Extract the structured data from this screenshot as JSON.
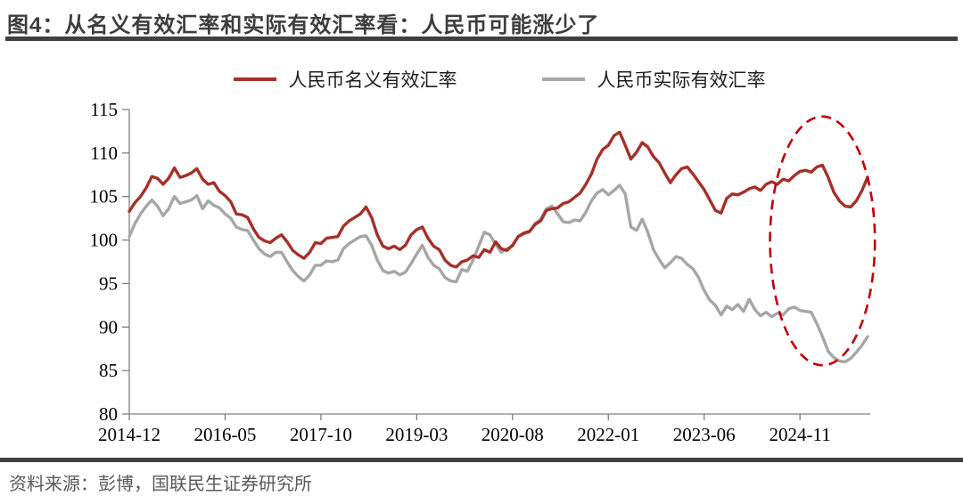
{
  "title": "图4：从名义有效汇率和实际有效汇率看：人民币可能涨少了",
  "source": "资料来源：彭博，国联民生证券研究所",
  "legend": [
    {
      "label": "人民币名义有效汇率",
      "color": "#A5302A"
    },
    {
      "label": "人民币实际有效汇率",
      "color": "#A6A6A6"
    }
  ],
  "chart_data": {
    "type": "line",
    "title": "图4：从名义有效汇率和实际有效汇率看：人民币可能涨少了",
    "xlabel": "",
    "ylabel": "",
    "ylim": [
      80,
      115
    ],
    "y_ticks": [
      80,
      85,
      90,
      95,
      100,
      105,
      110,
      115
    ],
    "x_start": "2014-12",
    "x_end": "2025-11",
    "frequency": "monthly",
    "x_tick_labels": [
      "2014-12",
      "2016-05",
      "2017-10",
      "2019-03",
      "2020-08",
      "2022-01",
      "2023-06",
      "2024-11"
    ],
    "x_tick_indices": [
      0,
      17,
      34,
      51,
      68,
      85,
      102,
      119
    ],
    "grid": false,
    "legend_position": "top",
    "series": [
      {
        "name": "人民币名义有效汇率",
        "color": "#A5302A",
        "values": [
          103.3,
          104.3,
          105.0,
          106.0,
          107.3,
          107.1,
          106.4,
          107.1,
          108.3,
          107.2,
          107.4,
          107.7,
          108.2,
          107.0,
          106.4,
          106.6,
          105.6,
          105.1,
          104.4,
          103.0,
          102.9,
          102.6,
          101.3,
          100.3,
          99.9,
          99.7,
          100.2,
          100.6,
          99.8,
          98.8,
          98.3,
          97.9,
          98.6,
          99.7,
          99.6,
          100.2,
          100.3,
          100.4,
          101.6,
          102.2,
          102.6,
          103.0,
          103.8,
          102.6,
          100.6,
          99.3,
          99.0,
          99.3,
          98.9,
          99.4,
          100.6,
          101.2,
          101.5,
          100.2,
          99.3,
          98.9,
          97.7,
          97.1,
          96.9,
          97.5,
          97.7,
          98.2,
          98.0,
          98.9,
          98.6,
          99.8,
          99.0,
          98.8,
          99.4,
          100.4,
          100.8,
          101.0,
          101.8,
          102.2,
          103.4,
          103.6,
          103.7,
          104.2,
          104.4,
          104.9,
          105.4,
          106.4,
          107.6,
          109.3,
          110.4,
          110.9,
          112.0,
          112.4,
          110.9,
          109.3,
          110.1,
          111.2,
          110.7,
          109.6,
          108.9,
          107.7,
          106.6,
          107.5,
          108.2,
          108.4,
          107.6,
          106.7,
          105.8,
          104.6,
          103.4,
          103.1,
          104.8,
          105.3,
          105.2,
          105.5,
          105.9,
          106.1,
          105.7,
          106.4,
          106.7,
          106.4,
          107.0,
          106.8,
          107.4,
          107.9,
          108.0,
          107.8,
          108.4,
          108.6,
          107.2,
          105.5,
          104.5,
          103.9,
          103.8,
          104.5,
          105.7,
          107.2
        ]
      },
      {
        "name": "人民币实际有效汇率",
        "color": "#A6A6A6",
        "values": [
          100.4,
          101.9,
          103.0,
          103.9,
          104.6,
          103.9,
          102.8,
          103.6,
          105.0,
          104.2,
          104.4,
          104.6,
          105.1,
          103.6,
          104.5,
          104.0,
          103.7,
          103.0,
          102.5,
          101.5,
          101.2,
          101.1,
          100.0,
          99.0,
          98.4,
          98.1,
          98.6,
          98.6,
          97.5,
          96.5,
          95.8,
          95.3,
          96.0,
          97.1,
          97.1,
          97.6,
          97.5,
          97.7,
          99.0,
          99.6,
          100.0,
          100.4,
          100.5,
          99.4,
          97.7,
          96.5,
          96.2,
          96.4,
          96.0,
          96.3,
          97.3,
          98.4,
          99.4,
          98.0,
          97.1,
          96.7,
          95.7,
          95.3,
          95.2,
          96.6,
          96.4,
          97.7,
          99.3,
          100.9,
          100.6,
          99.5,
          98.6,
          99.0,
          99.3,
          100.4,
          100.7,
          100.9,
          101.9,
          102.4,
          103.6,
          103.9,
          103.0,
          102.1,
          102.0,
          102.3,
          102.2,
          103.2,
          104.5,
          105.4,
          105.8,
          105.2,
          105.7,
          106.3,
          105.3,
          101.5,
          101.1,
          102.4,
          100.9,
          98.9,
          97.8,
          96.8,
          97.4,
          98.1,
          97.9,
          97.2,
          96.7,
          95.7,
          94.2,
          93.1,
          92.5,
          91.4,
          92.4,
          92.0,
          92.6,
          91.8,
          93.2,
          92.0,
          91.3,
          91.7,
          91.2,
          91.6,
          91.4,
          92.1,
          92.3,
          91.9,
          91.8,
          91.7,
          90.4,
          88.9,
          87.2,
          86.5,
          86.1,
          86.0,
          86.4,
          87.1,
          87.9,
          88.9
        ]
      }
    ],
    "annotation_ellipse": {
      "note": "虚线椭圆圈出2024年中以来名义与实际有效汇率的背离区间",
      "color": "#C00000",
      "center_x_index": 123,
      "center_value": 99.9,
      "radius_x_months": 9.3,
      "radius_y_value": 14.3
    }
  }
}
